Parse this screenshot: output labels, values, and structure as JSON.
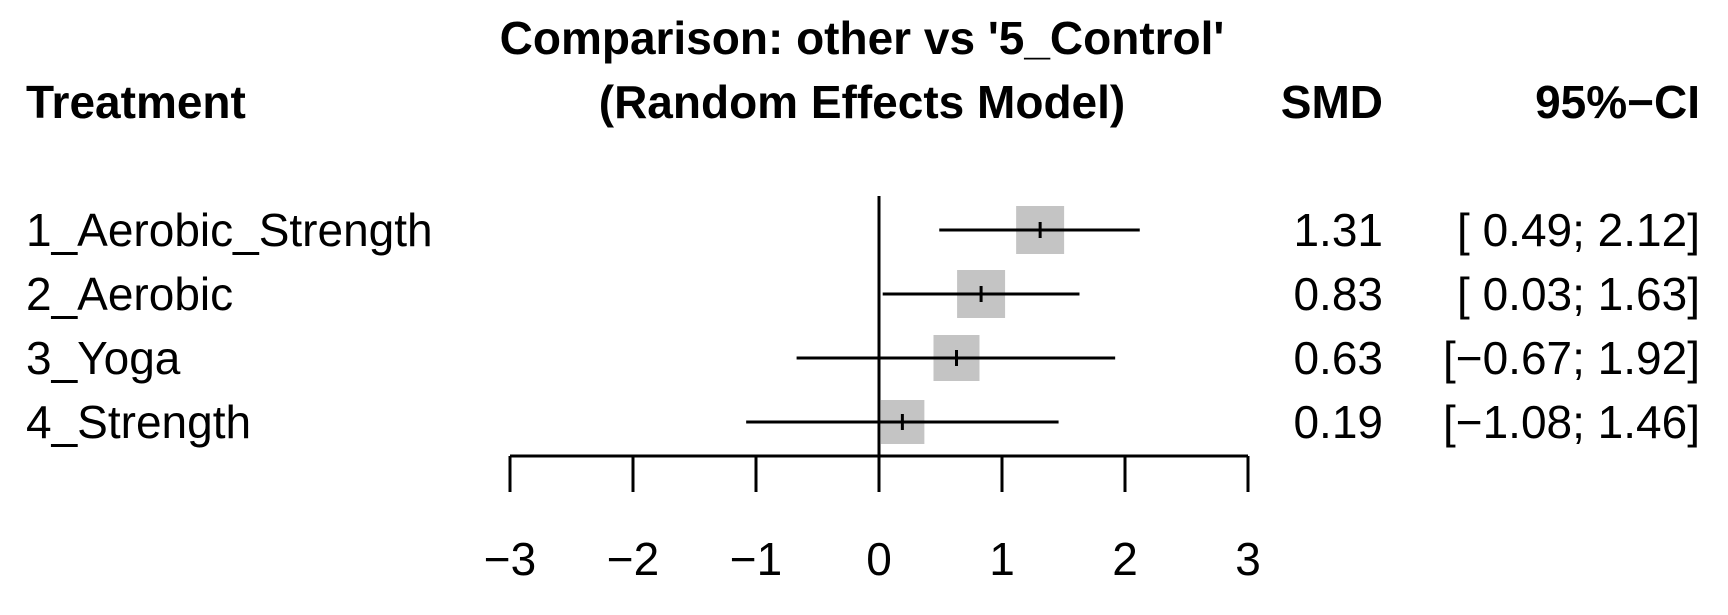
{
  "chart_data": {
    "type": "forest",
    "title_line1": "Comparison: other vs '5_Control'",
    "title_line2": "(Random Effects Model)",
    "column_headers": {
      "treatment": "Treatment",
      "smd": "SMD",
      "ci": "95%−CI"
    },
    "rows": [
      {
        "label": "1_Aerobic_Strength",
        "smd": 1.31,
        "lower": 0.49,
        "upper": 2.12,
        "smd_text": "1.31",
        "ci_text": "[ 0.49; 2.12]"
      },
      {
        "label": "2_Aerobic",
        "smd": 0.83,
        "lower": 0.03,
        "upper": 1.63,
        "smd_text": "0.83",
        "ci_text": "[ 0.03; 1.63]"
      },
      {
        "label": "3_Yoga",
        "smd": 0.63,
        "lower": -0.67,
        "upper": 1.92,
        "smd_text": "0.63",
        "ci_text": "[−0.67; 1.92]"
      },
      {
        "label": "4_Strength",
        "smd": 0.19,
        "lower": -1.08,
        "upper": 1.46,
        "smd_text": "0.19",
        "ci_text": "[−1.08; 1.46]"
      }
    ],
    "x_axis": {
      "range": [
        -3,
        3
      ],
      "ticks": [
        -3,
        -2,
        -1,
        0,
        1,
        2,
        3
      ],
      "tick_labels": [
        "−3",
        "−2",
        "−1",
        "0",
        "1",
        "2",
        "3"
      ]
    },
    "reference_line": 0,
    "colors": {
      "box": "#c4c4c4",
      "line": "#000000"
    }
  }
}
